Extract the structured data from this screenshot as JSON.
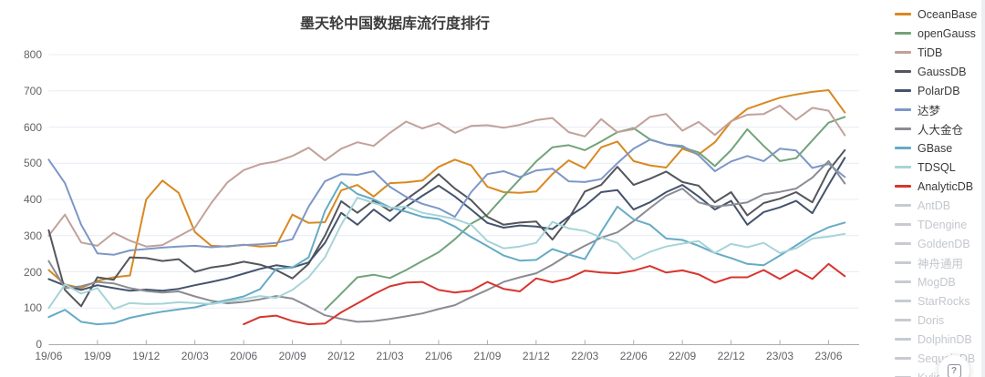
{
  "title": "墨天轮中国数据库流行度排行",
  "help_icon": "?",
  "chart_data": {
    "type": "line",
    "title": "墨天轮中国数据库流行度排行",
    "grid": true,
    "legend_position": "right",
    "ylim": [
      0,
      800
    ],
    "y_ticks": [
      0,
      100,
      200,
      300,
      400,
      500,
      600,
      700,
      800
    ],
    "x_tick_labels": [
      "19/06",
      "19/09",
      "19/12",
      "20/03",
      "20/06",
      "20/09",
      "20/12",
      "21/03",
      "21/06",
      "21/09",
      "21/12",
      "22/03",
      "22/06",
      "22/09",
      "22/12",
      "23/03",
      "23/06"
    ],
    "x_unit": "year/month, monthly points from 19/06 to 23/07",
    "series": [
      {
        "name": "OceanBase",
        "color": "#d8891f",
        "enabled": true,
        "values": [
          205,
          165,
          155,
          175,
          185,
          190,
          400,
          452,
          418,
          310,
          272,
          270,
          275,
          270,
          272,
          358,
          335,
          337,
          425,
          440,
          408,
          445,
          447,
          452,
          490,
          510,
          494,
          435,
          420,
          418,
          422,
          470,
          508,
          486,
          544,
          560,
          506,
          494,
          488,
          540,
          524,
          558,
          615,
          650,
          666,
          681,
          690,
          697,
          702,
          640
        ]
      },
      {
        "name": "openGauss",
        "color": "#73a37a",
        "enabled": true,
        "values": [
          null,
          null,
          null,
          null,
          null,
          null,
          null,
          null,
          null,
          null,
          null,
          null,
          null,
          null,
          null,
          null,
          null,
          95,
          140,
          185,
          192,
          183,
          205,
          230,
          254,
          290,
          333,
          358,
          408,
          456,
          505,
          544,
          550,
          536,
          560,
          586,
          597,
          566,
          552,
          544,
          530,
          492,
          536,
          594,
          548,
          506,
          514,
          563,
          612,
          628
        ]
      },
      {
        "name": "TiDB",
        "color": "#c2a19a",
        "enabled": true,
        "values": [
          300,
          358,
          281,
          272,
          308,
          286,
          270,
          274,
          298,
          322,
          390,
          447,
          481,
          497,
          505,
          520,
          543,
          508,
          540,
          558,
          548,
          584,
          615,
          596,
          611,
          584,
          603,
          605,
          598,
          606,
          619,
          625,
          586,
          574,
          622,
          586,
          594,
          628,
          636,
          590,
          614,
          578,
          616,
          634,
          636,
          659,
          620,
          653,
          645,
          577
        ]
      },
      {
        "name": "GaussDB",
        "color": "#54565c",
        "enabled": true,
        "values": [
          315,
          150,
          105,
          185,
          178,
          240,
          238,
          230,
          235,
          200,
          212,
          218,
          228,
          220,
          205,
          182,
          222,
          300,
          395,
          363,
          397,
          368,
          400,
          432,
          470,
          430,
          398,
          352,
          330,
          336,
          339,
          289,
          347,
          422,
          440,
          490,
          440,
          457,
          477,
          448,
          438,
          392,
          420,
          356,
          390,
          402,
          420,
          392,
          480,
          536
        ]
      },
      {
        "name": "PolarDB",
        "color": "#44536d",
        "enabled": true,
        "values": [
          180,
          162,
          150,
          163,
          155,
          148,
          151,
          148,
          153,
          163,
          172,
          182,
          195,
          208,
          218,
          212,
          226,
          280,
          363,
          330,
          372,
          340,
          380,
          410,
          438,
          408,
          372,
          335,
          322,
          328,
          325,
          318,
          352,
          382,
          420,
          426,
          372,
          392,
          420,
          440,
          408,
          372,
          396,
          330,
          365,
          378,
          396,
          362,
          440,
          515
        ]
      },
      {
        "name": "达梦",
        "color": "#7d97c7",
        "enabled": true,
        "values": [
          510,
          445,
          330,
          251,
          247,
          259,
          263,
          267,
          270,
          272,
          268,
          271,
          274,
          276,
          280,
          290,
          380,
          450,
          470,
          468,
          478,
          435,
          407,
          388,
          375,
          352,
          420,
          470,
          478,
          462,
          480,
          485,
          450,
          448,
          456,
          500,
          540,
          565,
          552,
          548,
          522,
          478,
          505,
          520,
          506,
          540,
          535,
          487,
          498,
          462
        ]
      },
      {
        "name": "人大金仓",
        "color": "#8a8c92",
        "enabled": true,
        "values": [
          230,
          155,
          160,
          172,
          168,
          155,
          147,
          143,
          146,
          132,
          120,
          113,
          117,
          124,
          133,
          126,
          104,
          80,
          70,
          62,
          64,
          70,
          77,
          85,
          97,
          108,
          130,
          150,
          172,
          185,
          196,
          220,
          248,
          272,
          294,
          309,
          340,
          376,
          410,
          430,
          392,
          380,
          385,
          392,
          414,
          421,
          430,
          460,
          506,
          444
        ]
      },
      {
        "name": "GBase",
        "color": "#66abc6",
        "enabled": true,
        "values": [
          75,
          95,
          62,
          55,
          58,
          73,
          82,
          90,
          96,
          102,
          113,
          122,
          132,
          152,
          208,
          212,
          240,
          368,
          448,
          415,
          400,
          378,
          366,
          352,
          346,
          325,
          296,
          271,
          245,
          231,
          233,
          263,
          248,
          235,
          310,
          380,
          345,
          330,
          292,
          288,
          272,
          252,
          238,
          222,
          218,
          245,
          273,
          302,
          323,
          336
        ]
      },
      {
        "name": "TDSQL",
        "color": "#a6d4d8",
        "enabled": true,
        "values": [
          100,
          165,
          140,
          155,
          97,
          114,
          111,
          112,
          116,
          114,
          111,
          118,
          125,
          133,
          128,
          150,
          185,
          240,
          330,
          405,
          390,
          377,
          380,
          363,
          355,
          346,
          330,
          285,
          265,
          270,
          280,
          338,
          320,
          313,
          295,
          280,
          234,
          255,
          270,
          278,
          285,
          252,
          277,
          268,
          280,
          252,
          265,
          292,
          297,
          305
        ]
      },
      {
        "name": "AnalyticDB",
        "color": "#d7352e",
        "enabled": true,
        "values": [
          null,
          null,
          null,
          null,
          null,
          null,
          null,
          null,
          null,
          null,
          null,
          null,
          55,
          75,
          79,
          64,
          55,
          57,
          88,
          113,
          138,
          160,
          170,
          172,
          150,
          143,
          148,
          172,
          153,
          146,
          182,
          171,
          182,
          203,
          198,
          196,
          203,
          216,
          198,
          204,
          193,
          170,
          185,
          185,
          205,
          180,
          205,
          180,
          222,
          188
        ]
      },
      {
        "name": "AntDB",
        "color": "#c7cbd1",
        "enabled": false,
        "values": null
      },
      {
        "name": "TDengine",
        "color": "#c7cbd1",
        "enabled": false,
        "values": null
      },
      {
        "name": "GoldenDB",
        "color": "#c7cbd1",
        "enabled": false,
        "values": null
      },
      {
        "name": "神舟通用",
        "color": "#c7cbd1",
        "enabled": false,
        "values": null
      },
      {
        "name": "MogDB",
        "color": "#c7cbd1",
        "enabled": false,
        "values": null
      },
      {
        "name": "StarRocks",
        "color": "#c7cbd1",
        "enabled": false,
        "values": null
      },
      {
        "name": "Doris",
        "color": "#c7cbd1",
        "enabled": false,
        "values": null
      },
      {
        "name": "DolphinDB",
        "color": "#c7cbd1",
        "enabled": false,
        "values": null
      },
      {
        "name": "SequoiaDB",
        "color": "#c7cbd1",
        "enabled": false,
        "values": null
      },
      {
        "name": "Kyligence",
        "color": "#c7cbd1",
        "enabled": false,
        "values": null
      }
    ]
  }
}
